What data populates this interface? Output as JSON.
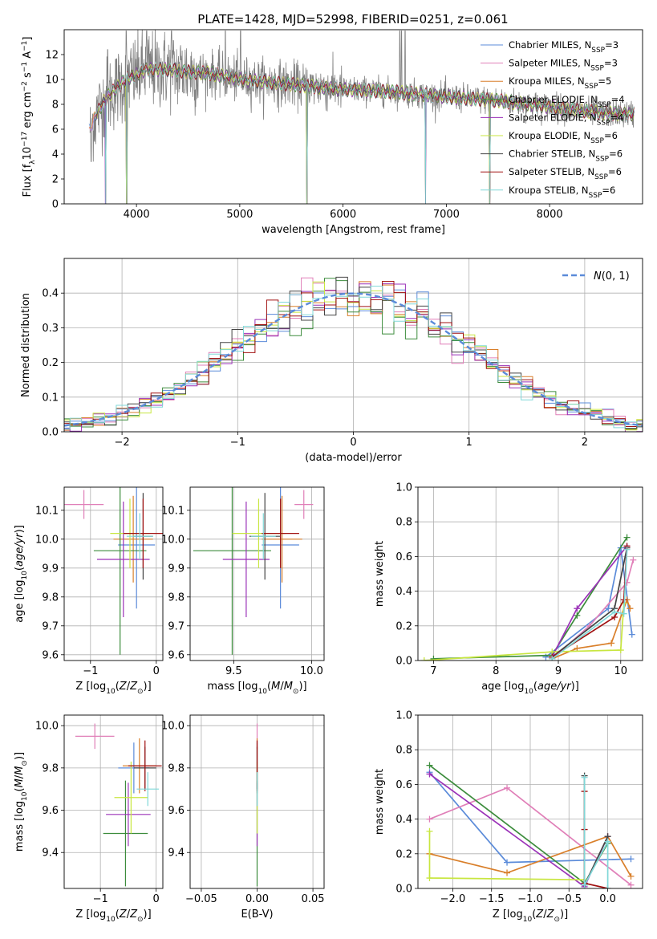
{
  "title": "PLATE=1428, MJD=52998, FIBERID=0251, z=0.061",
  "colors": {
    "Chabrier MILES": "#5b8bd9",
    "Salpeter MILES": "#e07fb8",
    "Kroupa MILES": "#d97f2a",
    "Chabrier ELODIE": "#3c8c3c",
    "Salpeter ELODIE": "#9b32b8",
    "Kroupa ELODIE": "#c8e640",
    "Chabrier STELIB": "#444444",
    "Salpeter STELIB": "#a01010",
    "Kroupa STELIB": "#80d8d8",
    "data": "#808080",
    "gaussian": "#5b8bd9"
  },
  "chart_data": [
    {
      "id": "spectrum",
      "type": "line",
      "xlabel": "wavelength [Angstrom, rest frame]",
      "ylabel": "Flux [f_λ10^-17 erg cm^-2 s^-1 A^-1]",
      "xlim": [
        3300,
        8900
      ],
      "ylim": [
        0,
        14
      ],
      "xticks": [
        4000,
        5000,
        6000,
        7000,
        8000
      ],
      "yticks": [
        0,
        2,
        4,
        6,
        8,
        10,
        12
      ],
      "legend_position": "top-right",
      "legend": [
        {
          "base": "Chabrier MILES, N",
          "sub": "SSP",
          "tail": "=3"
        },
        {
          "base": "Salpeter MILES, N",
          "sub": "SSP",
          "tail": "=3"
        },
        {
          "base": "Kroupa MILES, N",
          "sub": "SSP",
          "tail": "=5"
        },
        {
          "base": "Chabrier ELODIE, N",
          "sub": "SSP",
          "tail": "=4"
        },
        {
          "base": "Salpeter ELODIE, N",
          "sub": "SSP",
          "tail": "=4"
        },
        {
          "base": "Kroupa ELODIE, N",
          "sub": "SSP",
          "tail": "=6"
        },
        {
          "base": "Chabrier STELIB, N",
          "sub": "SSP",
          "tail": "=6"
        },
        {
          "base": "Salpeter STELIB, N",
          "sub": "SSP",
          "tail": "=6"
        },
        {
          "base": "Kroupa STELIB, N",
          "sub": "SSP",
          "tail": "=6"
        }
      ],
      "continuum_x": [
        3550,
        3700,
        3900,
        4100,
        4300,
        4500,
        4700,
        5000,
        5500,
        6000,
        6500,
        7000,
        7500,
        8000,
        8500,
        8820
      ],
      "continuum_y": [
        6.2,
        8.5,
        10.0,
        10.8,
        10.8,
        10.6,
        10.5,
        10.0,
        9.6,
        9.2,
        9.0,
        8.6,
        8.3,
        7.8,
        7.3,
        7.2
      ],
      "data_spikes": [
        {
          "x": 3560,
          "y": 3.4
        },
        {
          "x": 3720,
          "y": 12.4
        },
        {
          "x": 3900,
          "y": 13.9
        },
        {
          "x": 4100,
          "y": 13.9
        },
        {
          "x": 4340,
          "y": 13.9
        },
        {
          "x": 4860,
          "y": 13.9
        },
        {
          "x": 5007,
          "y": 13.9
        },
        {
          "x": 6550,
          "y": 13.9
        },
        {
          "x": 6565,
          "y": 13.9
        },
        {
          "x": 6600,
          "y": 13.9
        }
      ],
      "model_dips": [
        {
          "x": 3700,
          "y": 0
        },
        {
          "x": 3905,
          "y": 0
        },
        {
          "x": 5650,
          "y": 0
        },
        {
          "x": 6800,
          "y": 0
        },
        {
          "x": 7420,
          "y": 0
        }
      ]
    },
    {
      "id": "residual_histogram",
      "type": "histogram",
      "xlabel": "(data-model)/error",
      "ylabel": "Normed distribution",
      "xlim": [
        -2.5,
        2.5
      ],
      "ylim": [
        0,
        0.5
      ],
      "xticks": [
        -2,
        -1,
        0,
        1,
        2
      ],
      "yticks": [
        0.0,
        0.1,
        0.2,
        0.3,
        0.4
      ],
      "grid": true,
      "legend_position": "top-right",
      "legend": [
        "N(0,1)"
      ],
      "gaussian": {
        "mu": 0,
        "sigma": 1
      }
    },
    {
      "id": "age_vs_Z",
      "type": "errorbar",
      "xlabel": "Z [log10(Z/Z⊙)]",
      "ylabel": "age  [log10(age/yr)]",
      "xlim": [
        -1.4,
        0.1
      ],
      "ylim": [
        9.58,
        10.18
      ],
      "xticks": [
        -1,
        0
      ],
      "yticks": [
        9.6,
        9.7,
        9.8,
        9.9,
        10.0,
        10.1
      ],
      "grid": true,
      "points": [
        {
          "name": "Chabrier MILES",
          "x": -0.3,
          "xerr": 0.28,
          "y": 9.98,
          "yerr": 0.22
        },
        {
          "name": "Salpeter MILES",
          "x": -1.1,
          "xerr": 0.3,
          "y": 10.12,
          "yerr": 0.05
        },
        {
          "name": "Kroupa MILES",
          "x": -0.35,
          "xerr": 0.3,
          "y": 10.0,
          "yerr": 0.15
        },
        {
          "name": "Chabrier ELODIE",
          "x": -0.55,
          "xerr": 0.4,
          "y": 9.96,
          "yerr": 0.36
        },
        {
          "name": "Salpeter ELODIE",
          "x": -0.5,
          "xerr": 0.4,
          "y": 9.93,
          "yerr": 0.2
        },
        {
          "name": "Kroupa ELODIE",
          "x": -0.4,
          "xerr": 0.3,
          "y": 10.02,
          "yerr": 0.12
        },
        {
          "name": "Chabrier STELIB",
          "x": -0.2,
          "xerr": 0.15,
          "y": 10.01,
          "yerr": 0.15
        },
        {
          "name": "Salpeter STELIB",
          "x": -0.2,
          "xerr": 0.3,
          "y": 10.02,
          "yerr": 0.12
        },
        {
          "name": "Kroupa STELIB",
          "x": -0.25,
          "xerr": 0.2,
          "y": 10.01,
          "yerr": 0.08
        }
      ]
    },
    {
      "id": "age_vs_mass",
      "type": "errorbar",
      "xlabel": "mass [log10(M/M⊙)]",
      "ylabel": "",
      "xlim": [
        9.22,
        10.08
      ],
      "ylim": [
        9.58,
        10.18
      ],
      "xticks": [
        9.5,
        10.0
      ],
      "yticks": [
        9.6,
        9.7,
        9.8,
        9.9,
        10.0,
        10.1
      ],
      "grid": true,
      "points": [
        {
          "name": "Chabrier MILES",
          "x": 9.8,
          "xerr": 0.12,
          "y": 9.98,
          "yerr": 0.22
        },
        {
          "name": "Salpeter MILES",
          "x": 9.95,
          "xerr": 0.06,
          "y": 10.12,
          "yerr": 0.05
        },
        {
          "name": "Kroupa MILES",
          "x": 9.81,
          "xerr": 0.13,
          "y": 10.0,
          "yerr": 0.15
        },
        {
          "name": "Chabrier ELODIE",
          "x": 9.49,
          "xerr": 0.25,
          "y": 9.96,
          "yerr": 0.36
        },
        {
          "name": "Salpeter ELODIE",
          "x": 9.58,
          "xerr": 0.15,
          "y": 9.93,
          "yerr": 0.2
        },
        {
          "name": "Kroupa ELODIE",
          "x": 9.66,
          "xerr": 0.17,
          "y": 10.02,
          "yerr": 0.12
        },
        {
          "name": "Chabrier STELIB",
          "x": 9.7,
          "xerr": 0.1,
          "y": 10.01,
          "yerr": 0.15
        },
        {
          "name": "Salpeter STELIB",
          "x": 9.8,
          "xerr": 0.12,
          "y": 10.02,
          "yerr": 0.12
        },
        {
          "name": "Kroupa STELIB",
          "x": 9.69,
          "xerr": 0.08,
          "y": 10.01,
          "yerr": 0.08
        }
      ]
    },
    {
      "id": "mass_weight_vs_age",
      "type": "line",
      "xlabel": "age  [log10(age/yr)]",
      "ylabel": "mass weight",
      "xlim": [
        6.75,
        10.35
      ],
      "ylim": [
        0,
        1.0
      ],
      "xticks": [
        7,
        8,
        9,
        10
      ],
      "yticks": [
        0.0,
        0.2,
        0.4,
        0.6,
        0.8,
        1.0
      ],
      "grid": true,
      "series": [
        {
          "name": "Chabrier MILES",
          "x": [
            8.8,
            9.8,
            10.0,
            10.18
          ],
          "y": [
            0.02,
            0.3,
            0.65,
            0.15
          ]
        },
        {
          "name": "Salpeter MILES",
          "x": [
            8.9,
            9.5,
            10.1,
            10.2
          ],
          "y": [
            0.01,
            0.2,
            0.45,
            0.58
          ]
        },
        {
          "name": "Kroupa MILES",
          "x": [
            8.9,
            9.3,
            9.85,
            10.1,
            10.15
          ],
          "y": [
            0.01,
            0.07,
            0.1,
            0.35,
            0.3
          ]
        },
        {
          "name": "Chabrier ELODIE",
          "x": [
            7.0,
            8.9,
            9.3,
            10.1
          ],
          "y": [
            0.01,
            0.03,
            0.26,
            0.71
          ]
        },
        {
          "name": "Salpeter ELODIE",
          "x": [
            8.9,
            9.3,
            10.1
          ],
          "y": [
            0.02,
            0.3,
            0.66
          ]
        },
        {
          "name": "Kroupa ELODIE",
          "x": [
            6.85,
            8.9,
            10.0,
            10.05
          ],
          "y": [
            0.0,
            0.05,
            0.06,
            0.33
          ]
        },
        {
          "name": "Chabrier STELIB",
          "x": [
            8.9,
            9.9,
            10.1
          ],
          "y": [
            0.02,
            0.3,
            0.65
          ]
        },
        {
          "name": "Salpeter STELIB",
          "x": [
            8.9,
            9.9,
            10.05,
            10.1
          ],
          "y": [
            0.02,
            0.25,
            0.35,
            0.66
          ]
        },
        {
          "name": "Kroupa STELIB",
          "x": [
            8.9,
            9.9,
            10.05,
            10.1
          ],
          "y": [
            0.01,
            0.28,
            0.27,
            0.64
          ]
        }
      ]
    },
    {
      "id": "mass_vs_Z",
      "type": "errorbar",
      "xlabel": "Z [log10(Z/Z⊙)]",
      "ylabel": "mass [log10(M/M⊙)]",
      "xlim": [
        -1.65,
        0.12
      ],
      "ylim": [
        9.23,
        10.05
      ],
      "xticks": [
        -1,
        0
      ],
      "yticks": [
        9.4,
        9.6,
        9.8,
        10.0
      ],
      "grid": true,
      "points": [
        {
          "name": "Chabrier MILES",
          "x": -0.4,
          "xerr": 0.28,
          "y": 9.8,
          "yerr": 0.12
        },
        {
          "name": "Salpeter MILES",
          "x": -1.1,
          "xerr": 0.35,
          "y": 9.95,
          "yerr": 0.06
        },
        {
          "name": "Kroupa MILES",
          "x": -0.3,
          "xerr": 0.3,
          "y": 9.81,
          "yerr": 0.13
        },
        {
          "name": "Chabrier ELODIE",
          "x": -0.55,
          "xerr": 0.4,
          "y": 9.49,
          "yerr": 0.25
        },
        {
          "name": "Salpeter ELODIE",
          "x": -0.5,
          "xerr": 0.4,
          "y": 9.58,
          "yerr": 0.15
        },
        {
          "name": "Kroupa ELODIE",
          "x": -0.45,
          "xerr": 0.3,
          "y": 9.66,
          "yerr": 0.17
        },
        {
          "name": "Chabrier STELIB",
          "x": -0.2,
          "xerr": 0.2,
          "y": 9.8,
          "yerr": 0.1
        },
        {
          "name": "Salpeter STELIB",
          "x": -0.2,
          "xerr": 0.3,
          "y": 9.81,
          "yerr": 0.12
        },
        {
          "name": "Kroupa STELIB",
          "x": -0.15,
          "xerr": 0.2,
          "y": 9.7,
          "yerr": 0.08
        }
      ]
    },
    {
      "id": "mass_vs_ebv",
      "type": "errorbar",
      "xlabel": "E(B-V)",
      "ylabel": "",
      "xlim": [
        -0.06,
        0.06
      ],
      "ylim": [
        9.23,
        10.05
      ],
      "xticks": [
        -0.05,
        0.0,
        0.05
      ],
      "yticks": [
        9.4,
        9.6,
        9.8,
        10.0
      ],
      "grid": true,
      "points": [
        {
          "name": "Chabrier MILES",
          "x": 0.0,
          "xerr": 0.0,
          "y": 9.8,
          "yerr": 0.12
        },
        {
          "name": "Salpeter MILES",
          "x": 0.0,
          "xerr": 0.0,
          "y": 9.95,
          "yerr": 0.06
        },
        {
          "name": "Kroupa MILES",
          "x": 0.0,
          "xerr": 0.0,
          "y": 9.81,
          "yerr": 0.13
        },
        {
          "name": "Chabrier ELODIE",
          "x": 0.0,
          "xerr": 0.0,
          "y": 9.49,
          "yerr": 0.25
        },
        {
          "name": "Salpeter ELODIE",
          "x": 0.0,
          "xerr": 0.0,
          "y": 9.58,
          "yerr": 0.15
        },
        {
          "name": "Kroupa ELODIE",
          "x": 0.0,
          "xerr": 0.0,
          "y": 9.66,
          "yerr": 0.17
        },
        {
          "name": "Chabrier STELIB",
          "x": 0.0,
          "xerr": 0.0,
          "y": 9.8,
          "yerr": 0.1
        },
        {
          "name": "Salpeter STELIB",
          "x": 0.0,
          "xerr": 0.0,
          "y": 9.81,
          "yerr": 0.12
        },
        {
          "name": "Kroupa STELIB",
          "x": 0.0,
          "xerr": 0.0,
          "y": 9.7,
          "yerr": 0.08
        }
      ]
    },
    {
      "id": "mass_weight_vs_Z",
      "type": "line",
      "xlabel": "Z [log10(Z/Z⊙)]",
      "ylabel": "mass weight",
      "xlim": [
        -2.45,
        0.45
      ],
      "ylim": [
        0,
        1.0
      ],
      "xticks": [
        -2.0,
        -1.5,
        -1.0,
        -0.5,
        0.0
      ],
      "yticks": [
        0.0,
        0.2,
        0.4,
        0.6,
        0.8,
        1.0
      ],
      "grid": true,
      "series": [
        {
          "name": "Chabrier MILES",
          "x": [
            -2.3,
            -1.3,
            0.3
          ],
          "y": [
            0.67,
            0.15,
            0.17
          ]
        },
        {
          "name": "Salpeter MILES",
          "x": [
            -2.3,
            -1.3,
            0.3
          ],
          "y": [
            0.4,
            0.58,
            0.02
          ]
        },
        {
          "name": "Kroupa MILES",
          "x": [
            -2.3,
            -1.3,
            0.0,
            0.3
          ],
          "y": [
            0.2,
            0.09,
            0.3,
            0.07
          ]
        },
        {
          "name": "Chabrier ELODIE",
          "x": [
            -2.3,
            -0.3,
            0.0
          ],
          "y": [
            0.71,
            0.03,
            0.26
          ]
        },
        {
          "name": "Salpeter ELODIE",
          "x": [
            -2.3,
            -0.3,
            0.0
          ],
          "y": [
            0.66,
            0.01,
            0.3
          ]
        },
        {
          "name": "Kroupa ELODIE",
          "x": [
            -2.3,
            -2.3,
            -0.3
          ],
          "y": [
            0.33,
            0.06,
            0.05
          ]
        },
        {
          "name": "Chabrier STELIB",
          "x": [
            -0.3,
            -0.3,
            0.0
          ],
          "y": [
            0.65,
            0.02,
            0.3
          ]
        },
        {
          "name": "Salpeter STELIB",
          "x": [
            -0.3,
            -0.3,
            -0.3,
            0.0
          ],
          "y": [
            0.56,
            0.34,
            0.03,
            0.0
          ]
        },
        {
          "name": "Kroupa STELIB",
          "x": [
            -0.3,
            -0.3,
            0.0,
            0.0
          ],
          "y": [
            0.64,
            0.02,
            0.27,
            0.0
          ]
        }
      ]
    }
  ]
}
